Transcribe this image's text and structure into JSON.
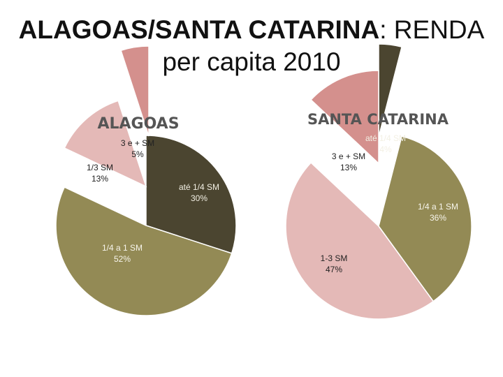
{
  "slide": {
    "title_bold": "ALAGOAS/SANTA CATARINA",
    "title_rest": ": RENDA",
    "title_line2": "per capita 2010"
  },
  "colors": {
    "ate_1_4_sm": "#4b4530",
    "1_4_a_1_sm": "#938a55",
    "1_3_sm": "#e4b9b7",
    "3_e_mais_sm": "#d4908d"
  },
  "chart_data": [
    {
      "type": "pie",
      "title": "ALAGOAS",
      "slices": [
        {
          "key": "ate",
          "label": "até 1/4 SM",
          "value": 30,
          "value_label": "30%",
          "color": "#4b4530",
          "text_color": "#f3f0e4"
        },
        {
          "key": "quarter",
          "label": "1/4 a 1 SM",
          "value": 52,
          "value_label": "52%",
          "color": "#938a55",
          "text_color": "#f7f5ec"
        },
        {
          "key": "third",
          "label": "1/3 SM",
          "value": 13,
          "value_label": "13%",
          "color": "#e4b9b7",
          "text_color": "#222222"
        },
        {
          "key": "three",
          "label": "3 e + SM",
          "value": 5,
          "value_label": "5%",
          "color": "#d4908d",
          "text_color": "#222222"
        }
      ]
    },
    {
      "type": "pie",
      "title": "SANTA CATARINA",
      "slices": [
        {
          "key": "ate",
          "label": "até 1/4 SM",
          "value": 4,
          "value_label": "4%",
          "color": "#4b4530",
          "text_color": "#f3f0e4"
        },
        {
          "key": "quarter",
          "label": "1/4 a 1 SM",
          "value": 36,
          "value_label": "36%",
          "color": "#938a55",
          "text_color": "#f7f5ec"
        },
        {
          "key": "third",
          "label": "1-3 SM",
          "value": 47,
          "value_label": "47%",
          "color": "#e4b9b7",
          "text_color": "#222222"
        },
        {
          "key": "three",
          "label": "3 e + SM",
          "value": 13,
          "value_label": "13%",
          "color": "#d4908d",
          "text_color": "#222222"
        }
      ]
    }
  ]
}
